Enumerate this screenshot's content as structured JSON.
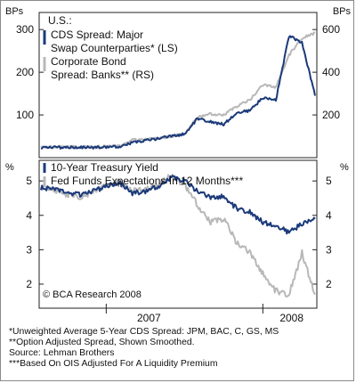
{
  "chart_data": [
    {
      "type": "line",
      "title": "U.S.:",
      "left_axis_unit": "BPs",
      "right_axis_unit": "BPs",
      "ylim_left": [
        0,
        340
      ],
      "ylim_right": [
        0,
        680
      ],
      "yticks_left": [
        100,
        200,
        300
      ],
      "yticks_right": [
        200,
        400,
        600
      ],
      "grid": false,
      "legend_position": "top-left",
      "colors": {
        "cds": "#1b3a7a",
        "corp": "#b8b8b8"
      },
      "x": [
        "2006-08",
        "2006-09",
        "2006-10",
        "2006-11",
        "2006-12",
        "2007-01",
        "2007-02",
        "2007-03",
        "2007-04",
        "2007-05",
        "2007-06",
        "2007-07",
        "2007-08",
        "2007-09",
        "2007-10",
        "2007-11",
        "2007-12",
        "2008-01",
        "2008-02",
        "2008-03",
        "2008-04",
        "2008-05"
      ],
      "series": [
        {
          "name": "CDS Spread: Major Swap Counterparties* (LS)",
          "axis": "left",
          "values": [
            24,
            24,
            24,
            24,
            24,
            25,
            26,
            35,
            40,
            45,
            50,
            55,
            92,
            84,
            78,
            105,
            110,
            140,
            135,
            285,
            270,
            145
          ]
        },
        {
          "name": "Corporate Bond Spread: Banks** (RS)",
          "axis": "right",
          "values": [
            50,
            50,
            50,
            50,
            50,
            52,
            53,
            82,
            85,
            90,
            100,
            110,
            190,
            205,
            200,
            240,
            270,
            340,
            330,
            480,
            560,
            585
          ]
        }
      ]
    },
    {
      "type": "line",
      "left_axis_unit": "%",
      "right_axis_unit": "%",
      "ylim": [
        1.3,
        5.6
      ],
      "yticks": [
        2,
        3,
        4,
        5
      ],
      "grid": false,
      "legend_position": "top-left",
      "annotation": "© BCA Research 2008",
      "colors": {
        "treasury": "#1b3a7a",
        "fedfunds": "#b8b8b8"
      },
      "xtick_labels": [
        "2007",
        "2008"
      ],
      "x": [
        "2006-08",
        "2006-09",
        "2006-10",
        "2006-11",
        "2006-12",
        "2007-01",
        "2007-02",
        "2007-03",
        "2007-04",
        "2007-05",
        "2007-06",
        "2007-07",
        "2007-08",
        "2007-09",
        "2007-10",
        "2007-11",
        "2007-12",
        "2008-01",
        "2008-02",
        "2008-03",
        "2008-04",
        "2008-05"
      ],
      "series": [
        {
          "name": "10-Year Treasury Yield",
          "values": [
            4.8,
            4.75,
            4.65,
            4.6,
            4.7,
            4.85,
            4.95,
            4.65,
            4.7,
            4.85,
            5.1,
            5.0,
            4.7,
            4.5,
            4.55,
            4.2,
            4.1,
            3.8,
            3.7,
            3.5,
            3.75,
            3.9
          ]
        },
        {
          "name": "Fed Funds Expectations In 12 Months***",
          "values": [
            4.8,
            4.75,
            4.6,
            4.55,
            4.65,
            4.85,
            4.95,
            4.7,
            4.75,
            4.9,
            5.15,
            4.9,
            4.3,
            3.8,
            3.9,
            3.2,
            2.9,
            2.3,
            1.8,
            1.7,
            2.9,
            1.7
          ]
        }
      ]
    }
  ],
  "footnotes": [
    "*Unweighted Average 5-Year CDS Spread: JPM, BAC, C, GS, MS",
    "**Option Adjusted Spread, Shown Smoothed.",
    "   Source: Lehman Brothers",
    "***Based On OIS Adjusted For A Liquidity Premium"
  ]
}
